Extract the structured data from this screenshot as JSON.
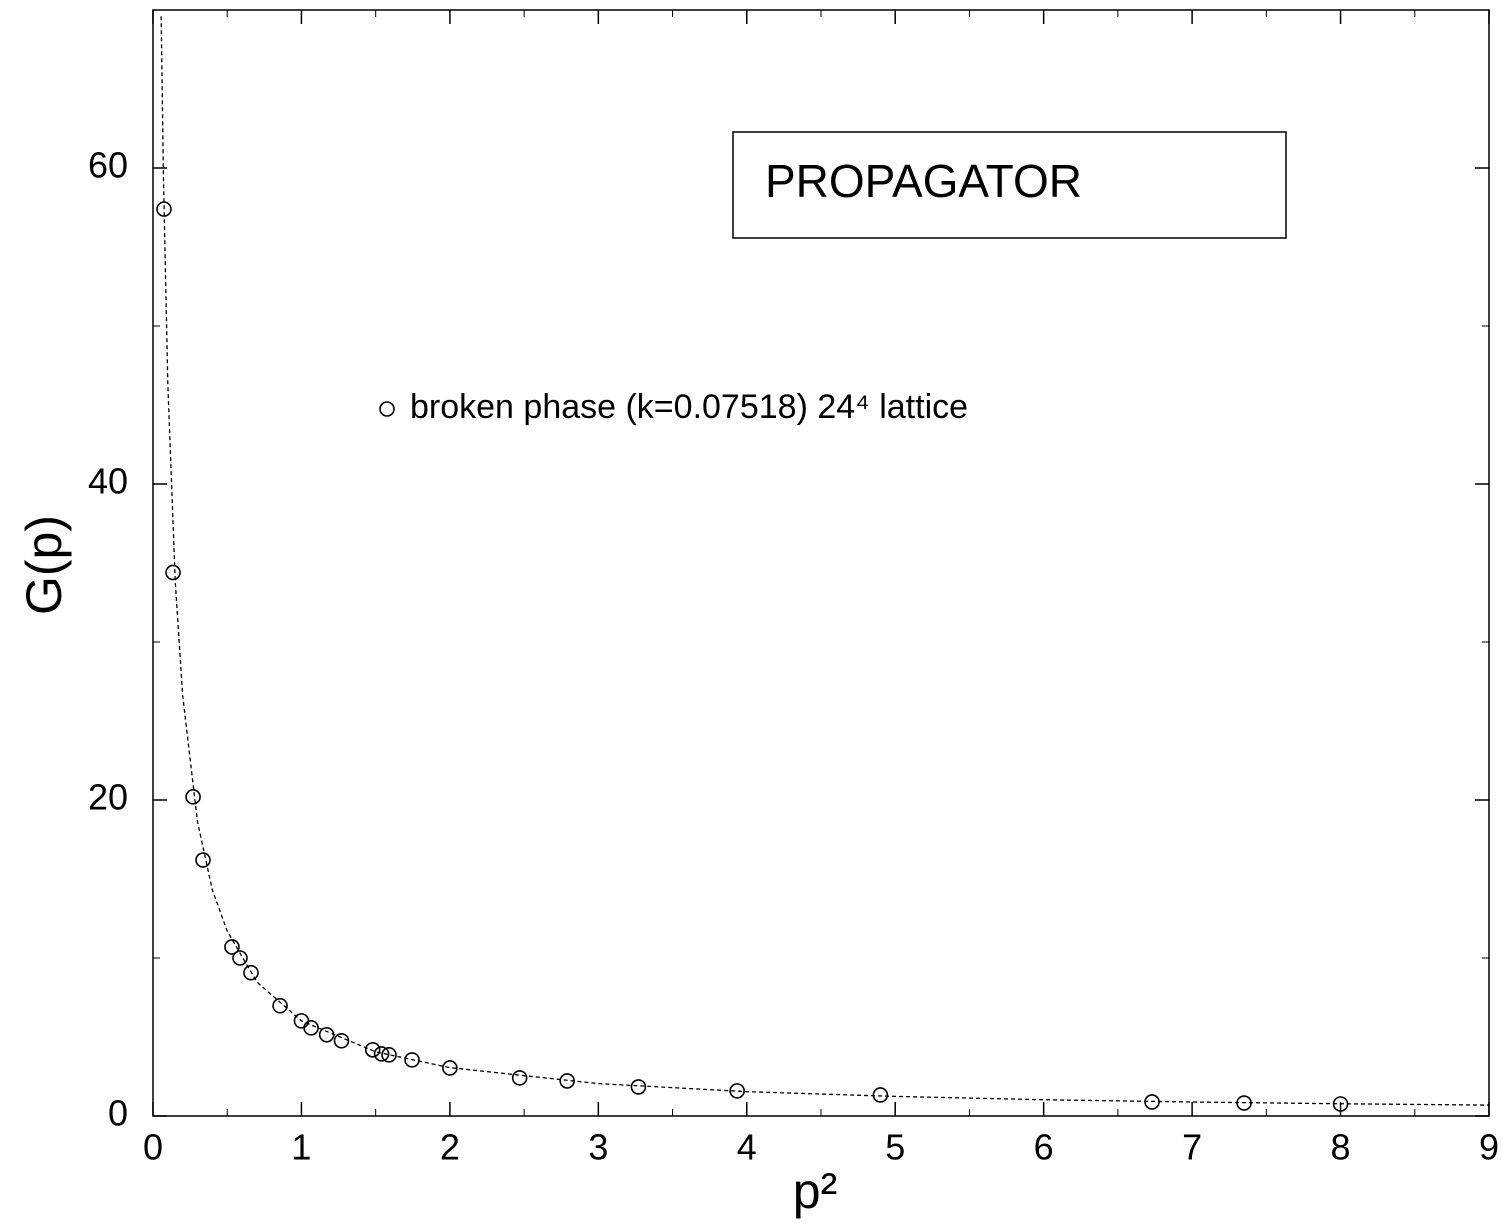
{
  "chart_data": {
    "type": "scatter",
    "x_label": "p²",
    "y_label": "G(p)",
    "annotation": "PROPAGATOR",
    "xlim": [
      0,
      9
    ],
    "ylim": [
      0,
      70
    ],
    "xticks": [
      0,
      1,
      2,
      3,
      4,
      5,
      6,
      7,
      8,
      9
    ],
    "yticks": [
      0,
      20,
      40,
      60
    ],
    "xminorticks": [
      0.5,
      1.5,
      2.5,
      3.5,
      4.5,
      5.5,
      6.5,
      7.5,
      8.5
    ],
    "yminorticks": [
      10,
      30,
      50
    ],
    "series": [
      {
        "name": "broken phase (k=0.07518)  24⁴ lattice",
        "color": "#000000",
        "marker": "open-circle",
        "x": [
          0.074,
          0.135,
          0.27,
          0.337,
          0.532,
          0.586,
          0.66,
          0.856,
          1.0,
          1.065,
          1.17,
          1.27,
          1.48,
          1.54,
          1.59,
          1.745,
          2.0,
          2.47,
          2.79,
          3.27,
          3.935,
          4.9,
          6.73,
          7.35,
          8.0
        ],
        "values": [
          57.4,
          34.4,
          20.2,
          16.2,
          10.7,
          10.0,
          9.07,
          6.98,
          6.02,
          5.58,
          5.14,
          4.76,
          4.19,
          3.93,
          3.87,
          3.55,
          3.04,
          2.41,
          2.22,
          1.84,
          1.59,
          1.33,
          0.89,
          0.82,
          0.76
        ]
      },
      {
        "color": "#000000",
        "line": "dashed",
        "x": [
          0.055,
          0.07,
          0.1,
          0.15,
          0.2,
          0.3,
          0.4,
          0.5,
          0.7,
          1,
          1.5,
          2,
          3,
          4,
          5,
          6,
          7,
          8,
          9
        ],
        "values": [
          69.6,
          59.6,
          46.3,
          33.8,
          26.6,
          18.6,
          14.3,
          11.7,
          8.48,
          6.02,
          4.06,
          3.06,
          2.05,
          1.54,
          1.24,
          1.03,
          0.886,
          0.775,
          0.69
        ]
      }
    ]
  }
}
